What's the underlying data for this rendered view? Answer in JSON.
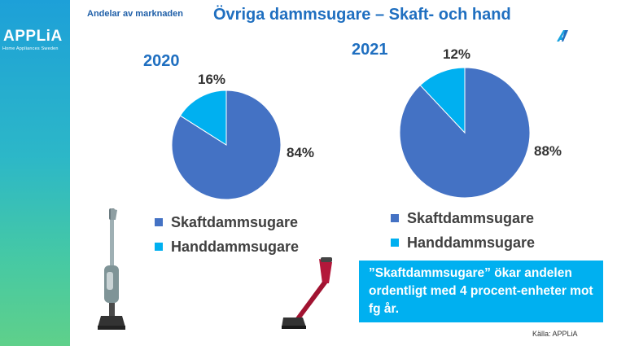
{
  "header": {
    "logo_text": "APPLiA",
    "logo_subtext": "Home Appliances Sweden",
    "section_label": "Andelar av marknaden",
    "title": "Övriga dammsugare – Skaft- och hand"
  },
  "colors": {
    "skaft": "#4472c4",
    "hand": "#00b0f0",
    "accent": "#1f6fc0",
    "note_bg": "#00b0f0"
  },
  "chart_data": [
    {
      "type": "pie",
      "title": "2020",
      "categories": [
        "Skaftdammsugare",
        "Handdammsugare"
      ],
      "values": [
        84,
        16
      ],
      "labels": [
        "84%",
        "16%"
      ],
      "legend": [
        "Skaftdammsugare",
        "Handdammsugare"
      ]
    },
    {
      "type": "pie",
      "title": "2021",
      "categories": [
        "Skaftdammsugare",
        "Handdammsugare"
      ],
      "values": [
        88,
        12
      ],
      "labels": [
        "88%",
        "12%"
      ],
      "legend": [
        "Skaftdammsugare",
        "Handdammsugare"
      ]
    }
  ],
  "note": "”Skaftdammsugare” ökar andelen ordentligt med 4 procent-enheter mot fg år.",
  "source": "Källa: APPLiA"
}
